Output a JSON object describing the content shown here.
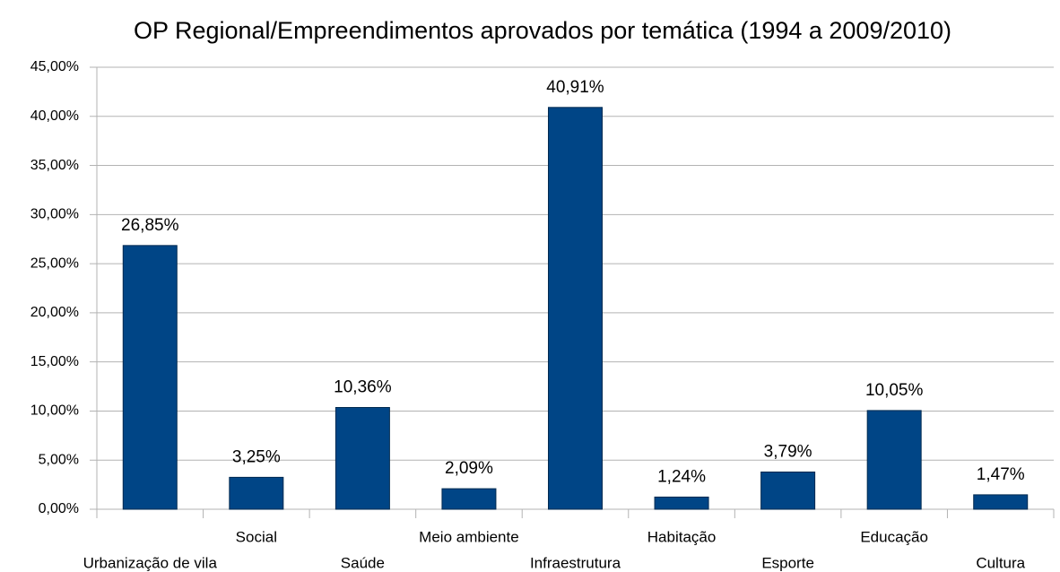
{
  "chart_data": {
    "type": "bar",
    "title": "OP Regional/Empreendimentos aprovados por temática (1994 a 2009/2010)",
    "categories": [
      "Urbanização de vila",
      "Social",
      "Saúde",
      "Meio ambiente",
      "Infraestrutura",
      "Habitação",
      "Esporte",
      "Educação",
      "Cultura"
    ],
    "values": [
      26.85,
      3.25,
      10.36,
      2.09,
      40.91,
      1.24,
      3.79,
      10.05,
      1.47
    ],
    "value_labels": [
      "26,85%",
      "3,25%",
      "10,36%",
      "2,09%",
      "40,91%",
      "1,24%",
      "3,79%",
      "10,05%",
      "1,47%"
    ],
    "color": "#004586",
    "ylim": [
      0,
      45
    ],
    "yticks": [
      {
        "value": 0,
        "label": "0,00%"
      },
      {
        "value": 5,
        "label": "5,00%"
      },
      {
        "value": 10,
        "label": "10,00%"
      },
      {
        "value": 15,
        "label": "15,00%"
      },
      {
        "value": 20,
        "label": "20,00%"
      },
      {
        "value": 25,
        "label": "25,00%"
      },
      {
        "value": 30,
        "label": "30,00%"
      },
      {
        "value": 35,
        "label": "35,00%"
      },
      {
        "value": 40,
        "label": "40,00%"
      },
      {
        "value": 45,
        "label": "45,00%"
      }
    ],
    "grid": true
  }
}
